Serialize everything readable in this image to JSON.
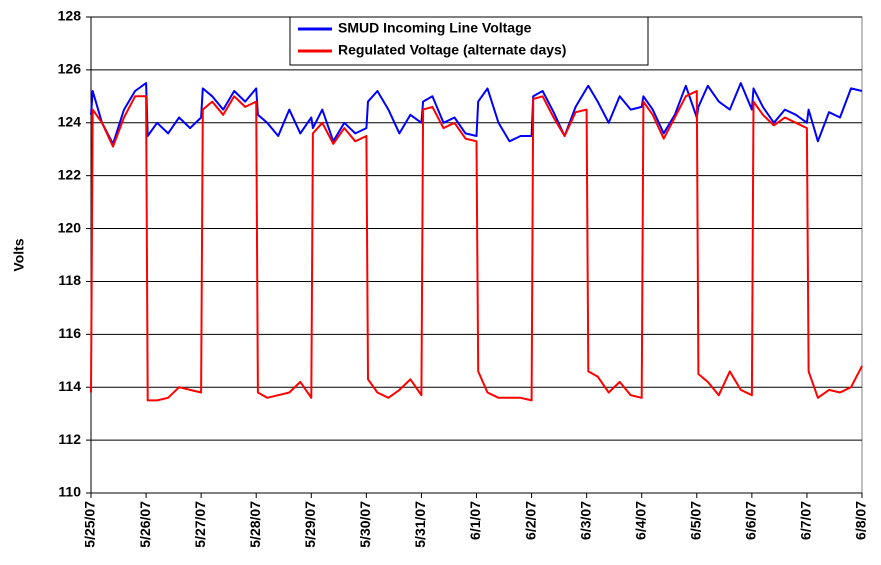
{
  "chart_data": {
    "type": "line",
    "y_label": "Volts",
    "xlim": [
      0,
      14
    ],
    "xticks": [
      {
        "value": 0,
        "label": "5/25/07"
      },
      {
        "value": 1,
        "label": "5/26/07"
      },
      {
        "value": 2,
        "label": "5/27/07"
      },
      {
        "value": 3,
        "label": "5/28/07"
      },
      {
        "value": 4,
        "label": "5/29/07"
      },
      {
        "value": 5,
        "label": "5/30/07"
      },
      {
        "value": 6,
        "label": "5/31/07"
      },
      {
        "value": 7,
        "label": "6/1/07"
      },
      {
        "value": 8,
        "label": "6/2/07"
      },
      {
        "value": 9,
        "label": "6/3/07"
      },
      {
        "value": 10,
        "label": "6/4/07"
      },
      {
        "value": 11,
        "label": "6/5/07"
      },
      {
        "value": 12,
        "label": "6/6/07"
      },
      {
        "value": 13,
        "label": "6/7/07"
      },
      {
        "value": 14,
        "label": "6/8/07"
      }
    ],
    "ylim": [
      110,
      128
    ],
    "yticks": [
      110,
      112,
      114,
      116,
      118,
      120,
      122,
      124,
      126,
      128
    ],
    "grid": true,
    "legend": "top",
    "x": [
      0,
      0.03,
      0.2,
      0.4,
      0.6,
      0.8,
      1,
      1.03,
      1.2,
      1.4,
      1.6,
      1.8,
      2,
      2.03,
      2.2,
      2.4,
      2.6,
      2.8,
      3,
      3.03,
      3.2,
      3.4,
      3.6,
      3.8,
      4,
      4.03,
      4.2,
      4.4,
      4.6,
      4.8,
      5,
      5.03,
      5.2,
      5.4,
      5.6,
      5.8,
      6,
      6.03,
      6.2,
      6.4,
      6.6,
      6.8,
      7,
      7.03,
      7.2,
      7.4,
      7.6,
      7.8,
      8,
      8.03,
      8.2,
      8.4,
      8.6,
      8.8,
      9,
      9.03,
      9.2,
      9.4,
      9.6,
      9.8,
      10,
      10.03,
      10.2,
      10.4,
      10.6,
      10.8,
      11,
      11.03,
      11.2,
      11.4,
      11.6,
      11.8,
      12,
      12.03,
      12.2,
      12.4,
      12.6,
      12.8,
      13,
      13.03,
      13.2,
      13.4,
      13.6,
      13.8,
      14
    ],
    "series": [
      {
        "name": "SMUD Incoming Line Voltage",
        "color": "#0000ff",
        "values": [
          124.3,
          125.2,
          124.0,
          123.2,
          124.5,
          125.2,
          125.5,
          123.5,
          124.0,
          123.6,
          124.2,
          123.8,
          124.2,
          125.3,
          125.0,
          124.5,
          125.2,
          124.8,
          125.3,
          124.3,
          124.0,
          123.5,
          124.5,
          123.6,
          124.2,
          123.8,
          124.5,
          123.3,
          124.0,
          123.6,
          123.8,
          124.8,
          125.2,
          124.5,
          123.6,
          124.3,
          124.0,
          124.8,
          125.0,
          124.0,
          124.2,
          123.6,
          123.5,
          124.8,
          125.3,
          124.0,
          123.3,
          123.5,
          123.5,
          125.0,
          125.2,
          124.4,
          123.5,
          124.6,
          125.3,
          125.4,
          124.8,
          124.0,
          125.0,
          124.5,
          124.6,
          125.0,
          124.5,
          123.6,
          124.3,
          125.4,
          124.2,
          124.6,
          125.4,
          124.8,
          124.5,
          125.5,
          124.5,
          125.3,
          124.6,
          124.0,
          124.5,
          124.3,
          124.0,
          124.5,
          123.3,
          124.4,
          124.2,
          125.3,
          125.2
        ]
      },
      {
        "name": "Regulated Voltage (alternate days)",
        "color": "#ff0000",
        "values": [
          113.8,
          124.5,
          124.0,
          123.1,
          124.2,
          125.0,
          125.0,
          113.5,
          113.5,
          113.6,
          114.0,
          113.9,
          113.8,
          124.5,
          124.8,
          124.3,
          125.0,
          124.6,
          124.8,
          113.8,
          113.6,
          113.7,
          113.8,
          114.2,
          113.6,
          123.6,
          124.0,
          123.2,
          123.8,
          123.3,
          123.5,
          114.3,
          113.8,
          113.6,
          113.9,
          114.3,
          113.7,
          124.5,
          124.6,
          123.8,
          124.0,
          123.4,
          123.3,
          114.6,
          113.8,
          113.6,
          113.6,
          113.6,
          113.5,
          124.9,
          125.0,
          124.2,
          123.5,
          124.4,
          124.5,
          114.6,
          114.4,
          113.8,
          114.2,
          113.7,
          113.6,
          124.8,
          124.3,
          123.4,
          124.2,
          125.0,
          125.2,
          114.5,
          114.2,
          113.7,
          114.6,
          113.9,
          113.7,
          124.8,
          124.3,
          123.9,
          124.2,
          124.0,
          123.8,
          114.6,
          113.6,
          113.9,
          113.8,
          114.0,
          114.8
        ]
      }
    ]
  }
}
